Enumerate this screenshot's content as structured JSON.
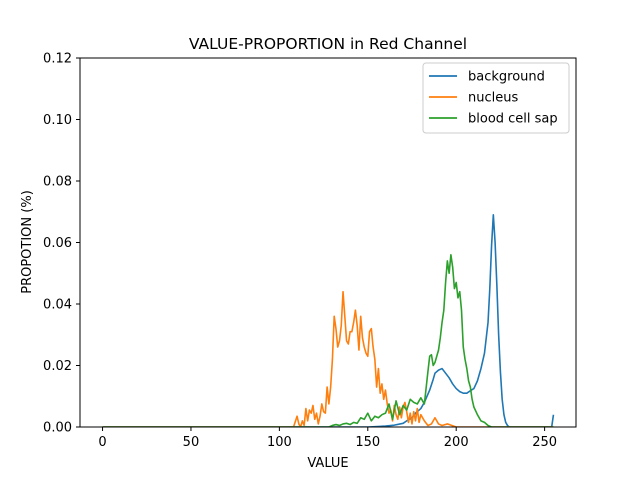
{
  "chart_data": {
    "type": "line",
    "title": "VALUE-PROPORTION in Red Channel",
    "xlabel": "VALUE",
    "ylabel": "PROPOTION (%)",
    "xlim": [
      -12.75,
      267.75
    ],
    "ylim": [
      0,
      0.12
    ],
    "xticks": [
      0,
      50,
      100,
      150,
      200,
      250
    ],
    "yticks": [
      0.0,
      0.02,
      0.04,
      0.06,
      0.08,
      0.1,
      0.12
    ],
    "ytick_labels": [
      "0.00",
      "0.02",
      "0.04",
      "0.06",
      "0.08",
      "0.10",
      "0.12"
    ],
    "grid": false,
    "legend_position": "top-right",
    "series": [
      {
        "name": "background",
        "color": "#1f77b4",
        "x": [
          0,
          130,
          150,
          160,
          165,
          170,
          172,
          175,
          177,
          180,
          182,
          185,
          187,
          188,
          190,
          192,
          194,
          196,
          198,
          200,
          202,
          204,
          206,
          208,
          210,
          212,
          214,
          216,
          218,
          219,
          220,
          221,
          222,
          223,
          224,
          225,
          226,
          227,
          228,
          229,
          230,
          250,
          254,
          255
        ],
        "y": [
          0,
          0,
          0,
          0.0003,
          0.0006,
          0.0012,
          0.002,
          0.003,
          0.0045,
          0.006,
          0.008,
          0.012,
          0.0155,
          0.0175,
          0.0185,
          0.019,
          0.0175,
          0.016,
          0.014,
          0.0125,
          0.0115,
          0.011,
          0.011,
          0.0118,
          0.0125,
          0.015,
          0.019,
          0.024,
          0.034,
          0.045,
          0.059,
          0.069,
          0.06,
          0.046,
          0.03,
          0.018,
          0.009,
          0.004,
          0.0015,
          0.0005,
          0,
          0,
          0,
          0.004
        ]
      },
      {
        "name": "nucleus",
        "color": "#ff7f0e",
        "x": [
          0,
          108,
          110,
          111,
          112,
          113,
          114,
          115,
          116,
          117,
          118,
          119,
          120,
          121,
          122,
          123,
          124,
          125,
          126,
          127,
          128,
          129,
          130,
          131,
          132,
          133,
          134,
          135,
          136,
          137,
          138,
          139,
          140,
          141,
          142,
          143,
          144,
          145,
          146,
          147,
          148,
          149,
          150,
          151,
          152,
          153,
          154,
          155,
          156,
          157,
          158,
          159,
          160,
          161,
          162,
          163,
          164,
          165,
          166,
          167,
          168,
          169,
          170,
          171,
          172,
          173,
          174,
          175,
          176,
          177,
          178,
          179,
          180,
          182,
          184,
          186,
          188,
          190,
          192,
          195,
          200,
          210,
          255
        ],
        "y": [
          0,
          0,
          0.0035,
          0.001,
          0,
          0.002,
          0.0005,
          0.006,
          0.002,
          0.0055,
          0.0045,
          0.007,
          0.0025,
          0.0045,
          0.001,
          0.0035,
          0.0075,
          0.005,
          0.0045,
          0.013,
          0.0075,
          0.013,
          0.022,
          0.036,
          0.032,
          0.026,
          0.028,
          0.033,
          0.044,
          0.036,
          0.028,
          0.027,
          0.031,
          0.031,
          0.034,
          0.038,
          0.033,
          0.025,
          0.036,
          0.029,
          0.026,
          0.024,
          0.023,
          0.031,
          0.032,
          0.026,
          0.022,
          0.013,
          0.019,
          0.011,
          0.014,
          0.009,
          0.012,
          0.0075,
          0.0045,
          0.0055,
          0.002,
          0.007,
          0.004,
          0.0025,
          0.0065,
          0.003,
          0.0065,
          0.008,
          0.005,
          0.0015,
          0.0045,
          0.001,
          0.005,
          0.002,
          0.006,
          0.0015,
          0.004,
          0.002,
          0.0005,
          0.001,
          0.003,
          0.001,
          0.0005,
          0.001,
          0,
          0,
          0
        ]
      },
      {
        "name": "blood cell sap",
        "color": "#2ca02c",
        "x": [
          0,
          128,
          130,
          132,
          134,
          136,
          138,
          140,
          142,
          144,
          146,
          148,
          150,
          152,
          154,
          156,
          158,
          160,
          162,
          164,
          166,
          168,
          170,
          172,
          174,
          176,
          178,
          180,
          182,
          184,
          185,
          186,
          187,
          188,
          189,
          190,
          191,
          192,
          193,
          194,
          195,
          196,
          197,
          198,
          199,
          200,
          201,
          202,
          203,
          204,
          205,
          206,
          207,
          208,
          209,
          210,
          212,
          214,
          216,
          218,
          220,
          255
        ],
        "y": [
          0,
          0,
          0.0005,
          0.0008,
          0.0005,
          0.001,
          0.0012,
          0.0008,
          0.0015,
          0.0012,
          0.003,
          0.0025,
          0.0045,
          0.002,
          0.0035,
          0.003,
          0.004,
          0.0045,
          0.0075,
          0.0025,
          0.0085,
          0.004,
          0.007,
          0.0055,
          0.009,
          0.008,
          0.0075,
          0.0095,
          0.0075,
          0.018,
          0.023,
          0.0235,
          0.02,
          0.021,
          0.023,
          0.025,
          0.029,
          0.034,
          0.038,
          0.047,
          0.054,
          0.05,
          0.056,
          0.052,
          0.045,
          0.047,
          0.042,
          0.044,
          0.038,
          0.026,
          0.022,
          0.019,
          0.015,
          0.013,
          0.009,
          0.0065,
          0.004,
          0.002,
          0.0015,
          0.0005,
          0,
          0
        ]
      }
    ]
  }
}
